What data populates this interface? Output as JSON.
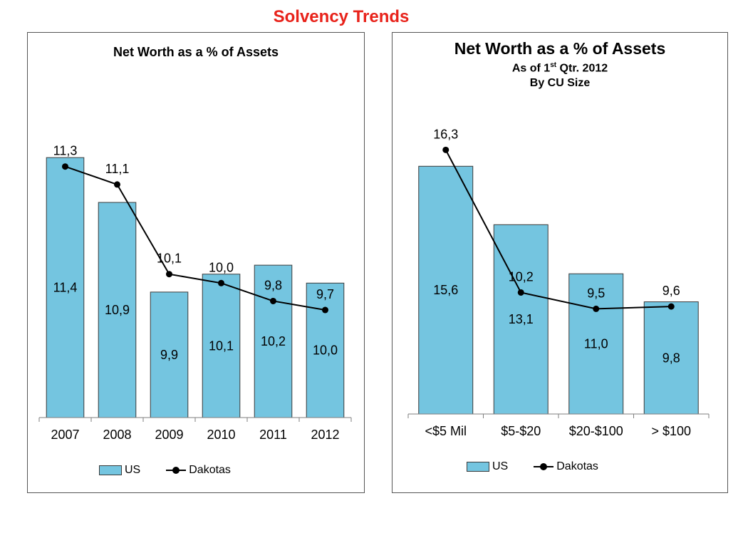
{
  "page_title": "Solvency Trends",
  "colors": {
    "title": "#e8221a",
    "bar": "#74c5e0",
    "bar_border": "#3a3a3a",
    "line": "#000000"
  },
  "chart_data": [
    {
      "type": "bar",
      "title": "Net Worth as a % of Assets",
      "categories": [
        "2007",
        "2008",
        "2009",
        "2010",
        "2011",
        "2012"
      ],
      "series": [
        {
          "name": "US",
          "type": "bar",
          "values": [
            11.4,
            10.9,
            9.9,
            10.1,
            10.2,
            10.0
          ],
          "labels": [
            "11,4",
            "10,9",
            "9,9",
            "10,1",
            "10,2",
            "10,0"
          ]
        },
        {
          "name": "Dakotas",
          "type": "line",
          "values": [
            11.3,
            11.1,
            10.1,
            10.0,
            9.8,
            9.7
          ],
          "labels": [
            "11,3",
            "11,1",
            "10,1",
            "10,0",
            "9,8",
            "9,7"
          ]
        }
      ],
      "ylim": [
        8.5,
        11.6
      ],
      "grid": false,
      "legend": "bottom"
    },
    {
      "type": "bar",
      "title": "Net Worth as a % of Assets",
      "subtitle_prefix": "As of 1",
      "subtitle_sup": "st",
      "subtitle_suffix": " Qtr. 2012",
      "subtitle2": "By CU Size",
      "categories": [
        "<$5 Mil",
        "$5-$20",
        "$20-$100",
        "> $100"
      ],
      "series": [
        {
          "name": "US",
          "type": "bar",
          "values": [
            15.6,
            13.1,
            11.0,
            9.8
          ],
          "labels": [
            "15,6",
            "13,1",
            "11,0",
            "9,8"
          ]
        },
        {
          "name": "Dakotas",
          "type": "line",
          "values": [
            16.3,
            10.2,
            9.5,
            9.6
          ],
          "labels": [
            "16,3",
            "10,2",
            "9,5",
            "9,6"
          ]
        }
      ],
      "ylim": [
        5.0,
        17.5
      ],
      "grid": false,
      "legend": "bottom"
    }
  ]
}
